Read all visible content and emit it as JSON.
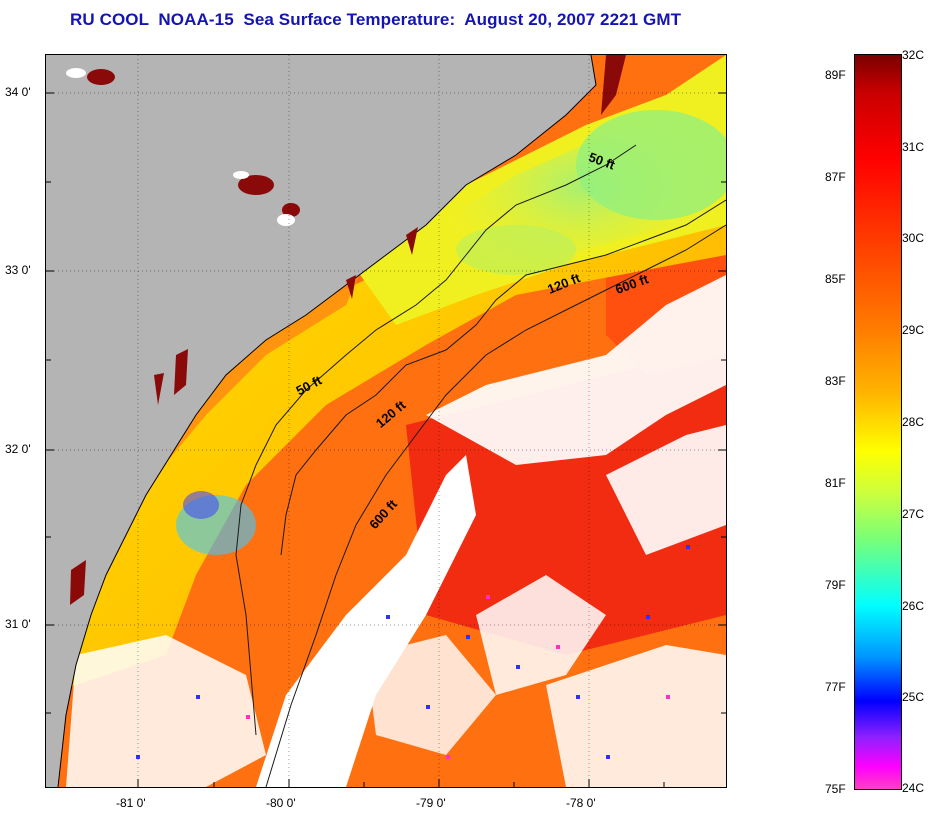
{
  "title": "RU COOL  NOAA-15  Sea Surface Temperature:  August 20, 2007 2221 GMT",
  "latitude_labels": [
    "34 0'",
    "33 0'",
    "32 0'",
    "31 0'"
  ],
  "longitude_labels": [
    "-81 0'",
    "-80 0'",
    "-79 0'",
    "-78 0'"
  ],
  "contour_labels": [
    "50 ft",
    "120 ft",
    "600 ft",
    "50 ft",
    "120 ft",
    "600 ft"
  ],
  "colorbar": {
    "celsius": [
      "32C",
      "31C",
      "30C",
      "29C",
      "28C",
      "27C",
      "26C",
      "25C",
      "24C"
    ],
    "fahrenheit": [
      "89F",
      "87F",
      "85F",
      "83F",
      "81F",
      "79F",
      "77F",
      "75F"
    ]
  },
  "colors": {
    "land": "#b4b4b4",
    "cloud": "#ffffff",
    "title": "#1414b4"
  }
}
